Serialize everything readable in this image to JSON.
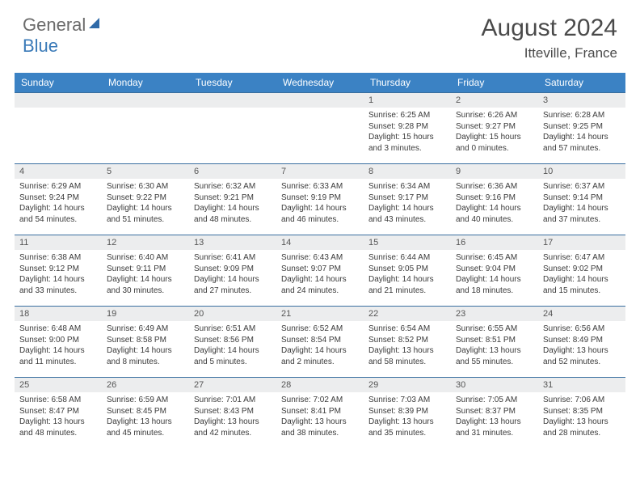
{
  "logo": {
    "word1": "General",
    "word2": "Blue"
  },
  "title": "August 2024",
  "location": "Itteville, France",
  "colors": {
    "header_bg": "#3b82c4",
    "header_fg": "#ffffff",
    "daynum_bg": "#ecedee",
    "cell_border": "#3a6fa0",
    "text": "#3a3a3a",
    "logo_gray": "#6b6b6b",
    "logo_blue": "#3a7ab8"
  },
  "weekdays": [
    "Sunday",
    "Monday",
    "Tuesday",
    "Wednesday",
    "Thursday",
    "Friday",
    "Saturday"
  ],
  "grid": [
    [
      null,
      null,
      null,
      null,
      {
        "n": "1",
        "sr": "6:25 AM",
        "ss": "9:28 PM",
        "dl": "15 hours and 3 minutes."
      },
      {
        "n": "2",
        "sr": "6:26 AM",
        "ss": "9:27 PM",
        "dl": "15 hours and 0 minutes."
      },
      {
        "n": "3",
        "sr": "6:28 AM",
        "ss": "9:25 PM",
        "dl": "14 hours and 57 minutes."
      }
    ],
    [
      {
        "n": "4",
        "sr": "6:29 AM",
        "ss": "9:24 PM",
        "dl": "14 hours and 54 minutes."
      },
      {
        "n": "5",
        "sr": "6:30 AM",
        "ss": "9:22 PM",
        "dl": "14 hours and 51 minutes."
      },
      {
        "n": "6",
        "sr": "6:32 AM",
        "ss": "9:21 PM",
        "dl": "14 hours and 48 minutes."
      },
      {
        "n": "7",
        "sr": "6:33 AM",
        "ss": "9:19 PM",
        "dl": "14 hours and 46 minutes."
      },
      {
        "n": "8",
        "sr": "6:34 AM",
        "ss": "9:17 PM",
        "dl": "14 hours and 43 minutes."
      },
      {
        "n": "9",
        "sr": "6:36 AM",
        "ss": "9:16 PM",
        "dl": "14 hours and 40 minutes."
      },
      {
        "n": "10",
        "sr": "6:37 AM",
        "ss": "9:14 PM",
        "dl": "14 hours and 37 minutes."
      }
    ],
    [
      {
        "n": "11",
        "sr": "6:38 AM",
        "ss": "9:12 PM",
        "dl": "14 hours and 33 minutes."
      },
      {
        "n": "12",
        "sr": "6:40 AM",
        "ss": "9:11 PM",
        "dl": "14 hours and 30 minutes."
      },
      {
        "n": "13",
        "sr": "6:41 AM",
        "ss": "9:09 PM",
        "dl": "14 hours and 27 minutes."
      },
      {
        "n": "14",
        "sr": "6:43 AM",
        "ss": "9:07 PM",
        "dl": "14 hours and 24 minutes."
      },
      {
        "n": "15",
        "sr": "6:44 AM",
        "ss": "9:05 PM",
        "dl": "14 hours and 21 minutes."
      },
      {
        "n": "16",
        "sr": "6:45 AM",
        "ss": "9:04 PM",
        "dl": "14 hours and 18 minutes."
      },
      {
        "n": "17",
        "sr": "6:47 AM",
        "ss": "9:02 PM",
        "dl": "14 hours and 15 minutes."
      }
    ],
    [
      {
        "n": "18",
        "sr": "6:48 AM",
        "ss": "9:00 PM",
        "dl": "14 hours and 11 minutes."
      },
      {
        "n": "19",
        "sr": "6:49 AM",
        "ss": "8:58 PM",
        "dl": "14 hours and 8 minutes."
      },
      {
        "n": "20",
        "sr": "6:51 AM",
        "ss": "8:56 PM",
        "dl": "14 hours and 5 minutes."
      },
      {
        "n": "21",
        "sr": "6:52 AM",
        "ss": "8:54 PM",
        "dl": "14 hours and 2 minutes."
      },
      {
        "n": "22",
        "sr": "6:54 AM",
        "ss": "8:52 PM",
        "dl": "13 hours and 58 minutes."
      },
      {
        "n": "23",
        "sr": "6:55 AM",
        "ss": "8:51 PM",
        "dl": "13 hours and 55 minutes."
      },
      {
        "n": "24",
        "sr": "6:56 AM",
        "ss": "8:49 PM",
        "dl": "13 hours and 52 minutes."
      }
    ],
    [
      {
        "n": "25",
        "sr": "6:58 AM",
        "ss": "8:47 PM",
        "dl": "13 hours and 48 minutes."
      },
      {
        "n": "26",
        "sr": "6:59 AM",
        "ss": "8:45 PM",
        "dl": "13 hours and 45 minutes."
      },
      {
        "n": "27",
        "sr": "7:01 AM",
        "ss": "8:43 PM",
        "dl": "13 hours and 42 minutes."
      },
      {
        "n": "28",
        "sr": "7:02 AM",
        "ss": "8:41 PM",
        "dl": "13 hours and 38 minutes."
      },
      {
        "n": "29",
        "sr": "7:03 AM",
        "ss": "8:39 PM",
        "dl": "13 hours and 35 minutes."
      },
      {
        "n": "30",
        "sr": "7:05 AM",
        "ss": "8:37 PM",
        "dl": "13 hours and 31 minutes."
      },
      {
        "n": "31",
        "sr": "7:06 AM",
        "ss": "8:35 PM",
        "dl": "13 hours and 28 minutes."
      }
    ]
  ],
  "labels": {
    "sunrise": "Sunrise:",
    "sunset": "Sunset:",
    "daylight": "Daylight:"
  }
}
